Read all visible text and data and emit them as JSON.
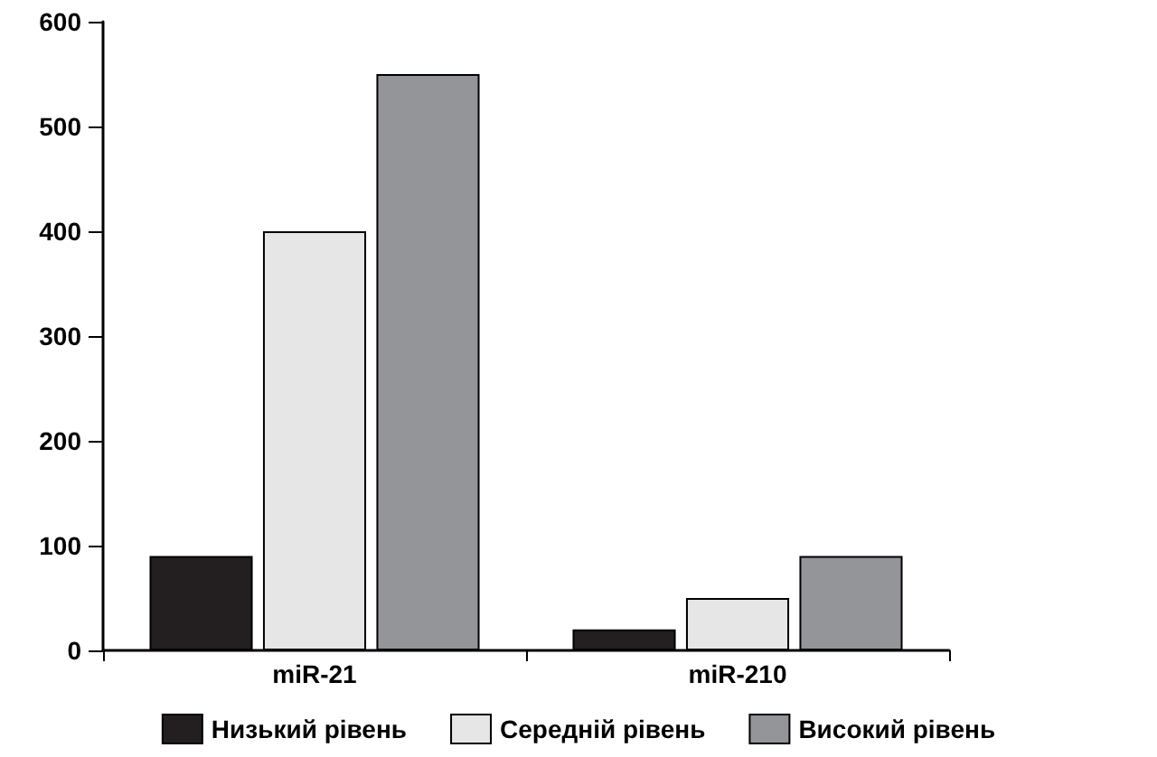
{
  "chart_data": {
    "type": "bar",
    "categories": [
      "miR-21",
      "miR-210"
    ],
    "series": [
      {
        "name": "Низький рівень",
        "color": "#231f20",
        "values": [
          90,
          20
        ]
      },
      {
        "name": "Середній рівень",
        "color": "#e6e6e6",
        "values": [
          400,
          50
        ]
      },
      {
        "name": "Високий рівень",
        "color": "#939598",
        "values": [
          550,
          90
        ]
      }
    ],
    "ylim": [
      0,
      600
    ],
    "yticks": [
      0,
      100,
      200,
      300,
      400,
      500,
      600
    ],
    "grid": false,
    "legend": "bottom"
  }
}
